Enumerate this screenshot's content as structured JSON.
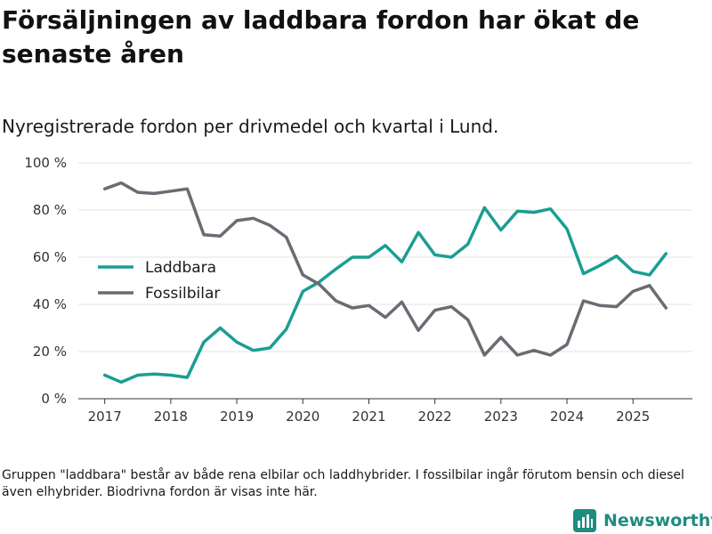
{
  "title": "Försäljningen av laddbara fordon har ökat de senaste åren",
  "subtitle": "Nyregistrerade fordon per drivmedel och kvartal i Lund.",
  "footnote": "Gruppen \"laddbara\" består av både rena elbilar och laddhybrider. I fossilbilar ingår förutom bensin och diesel även elhybrider. Biodrivna fordon är visas inte här.",
  "brand": {
    "name": "Newsworthy",
    "icon": "newsworthy-logo-icon",
    "color": "#1f8c80"
  },
  "chart_data": {
    "type": "line",
    "title": "Nyregistrerade fordon per drivmedel och kvartal i Lund.",
    "xlabel": "",
    "ylabel": "",
    "ylim": [
      0,
      100
    ],
    "xlim": [
      2016.6,
      2025.9
    ],
    "yticks": [
      0,
      20,
      40,
      60,
      80,
      100
    ],
    "ytick_labels": [
      "0 %",
      "20 %",
      "40 %",
      "60 %",
      "80 %",
      "100 %"
    ],
    "xticks": [
      2017,
      2018,
      2019,
      2020,
      2021,
      2022,
      2023,
      2024,
      2025
    ],
    "xtick_labels": [
      "2017",
      "2018",
      "2019",
      "2020",
      "2021",
      "2022",
      "2023",
      "2024",
      "2025"
    ],
    "grid": true,
    "legend_position": "middle-left",
    "x": [
      2017.0,
      2017.25,
      2017.5,
      2017.75,
      2018.0,
      2018.25,
      2018.5,
      2018.75,
      2019.0,
      2019.25,
      2019.5,
      2019.75,
      2020.0,
      2020.25,
      2020.5,
      2020.75,
      2021.0,
      2021.25,
      2021.5,
      2021.75,
      2022.0,
      2022.25,
      2022.5,
      2022.75,
      2023.0,
      2023.25,
      2023.5,
      2023.75,
      2024.0,
      2024.25,
      2024.5,
      2024.75,
      2025.0,
      2025.25,
      2025.5
    ],
    "series": [
      {
        "name": "Laddbara",
        "color": "#1a9e92",
        "values": [
          10,
          7,
          10,
          10.5,
          10,
          9,
          24,
          30,
          24,
          20.5,
          21.5,
          29.5,
          45.5,
          49.5,
          55,
          60,
          60,
          65,
          58,
          70.5,
          61,
          60,
          65.5,
          81,
          71.5,
          79.5,
          79,
          80.5,
          72,
          53,
          56.5,
          60.5,
          54,
          52.5,
          61.5
        ]
      },
      {
        "name": "Fossilbilar",
        "color": "#6b6b73",
        "values": [
          89,
          91.5,
          87.5,
          87,
          88,
          89,
          69.5,
          69,
          75.5,
          76.5,
          73.5,
          68.5,
          52.5,
          48.5,
          41.5,
          38.5,
          39.5,
          34.5,
          41,
          29,
          37.5,
          39,
          33.5,
          18.5,
          26,
          18.5,
          20.5,
          18.5,
          23,
          41.5,
          39.5,
          39,
          45.5,
          48,
          38.5
        ]
      }
    ]
  }
}
